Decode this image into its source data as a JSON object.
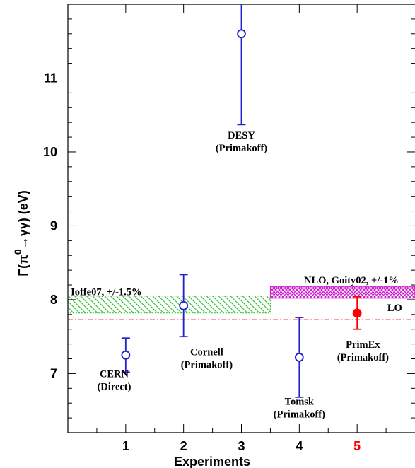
{
  "chart_data": {
    "type": "scatter",
    "title": "",
    "xlabel": "Experiments",
    "ylabel_parts": [
      "Γ(π",
      "0",
      "→γγ) (eV)"
    ],
    "xlim": [
      0,
      6
    ],
    "ylim": [
      6.2,
      12.0
    ],
    "xticks": [
      {
        "label": "1",
        "x": 1,
        "color": "#000000"
      },
      {
        "label": "2",
        "x": 2,
        "color": "#000000"
      },
      {
        "label": "3",
        "x": 3,
        "color": "#000000"
      },
      {
        "label": "4",
        "x": 4,
        "color": "#000000"
      },
      {
        "label": "5",
        "x": 5,
        "color": "#ff0000"
      }
    ],
    "yticks": [
      7,
      8,
      9,
      10,
      11
    ],
    "points": [
      {
        "x": 1,
        "y": 7.25,
        "lo": 7.02,
        "hi": 7.48,
        "color": "#1f1fd0",
        "filled": false,
        "label": [
          "CERN",
          "(Direct)"
        ],
        "label_x": 0.8,
        "label_y": 6.95
      },
      {
        "x": 2,
        "y": 7.92,
        "lo": 7.5,
        "hi": 8.34,
        "color": "#1f1fd0",
        "filled": false,
        "label": [
          "Cornell",
          "(Primakoff)"
        ],
        "label_x": 2.4,
        "label_y": 7.25
      },
      {
        "x": 3,
        "y": 11.6,
        "lo": 10.37,
        "hi": 12.0,
        "color": "#1f1fd0",
        "filled": false,
        "label": [
          "DESY",
          "(Primakoff)"
        ],
        "label_x": 3.0,
        "label_y": 10.18
      },
      {
        "x": 4,
        "y": 7.22,
        "lo": 6.68,
        "hi": 7.76,
        "color": "#1f1fd0",
        "filled": false,
        "label": [
          "Tomsk",
          "(Primakoff)"
        ],
        "label_x": 4.0,
        "label_y": 6.58
      },
      {
        "x": 5,
        "y": 7.82,
        "lo": 7.6,
        "hi": 8.04,
        "color": "#ff0000",
        "filled": true,
        "label": [
          "PrimEx",
          "(Primakoff)"
        ],
        "label_x": 5.1,
        "label_y": 7.35
      }
    ],
    "bands": [
      {
        "label": "Ioffe07, +/-1.5%",
        "x0": 0,
        "x1": 3.5,
        "y0": 7.82,
        "y1": 8.05,
        "color": "#22bb22",
        "pattern": "diagonal",
        "label_x": 0.05,
        "label_y": 8.06
      },
      {
        "label": "NLO, Goity02, +/-1%",
        "x0": 3.5,
        "x1": 6,
        "y0": 8.02,
        "y1": 8.18,
        "color": "#cc22cc",
        "pattern": "crosshatch",
        "label_x": 4.9,
        "label_y": 8.22
      }
    ],
    "reference_lines": [
      {
        "label": "LO",
        "y": 7.73,
        "color": "#ff0000",
        "style": "dash-dot",
        "label_x": 5.65
      }
    ]
  }
}
